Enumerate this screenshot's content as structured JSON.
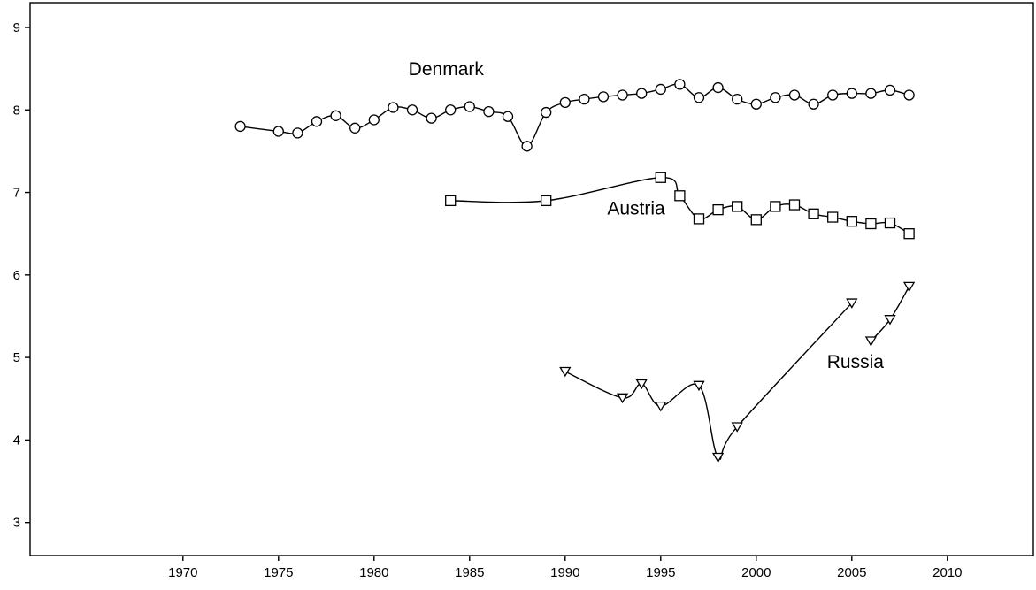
{
  "chart_data": {
    "type": "line",
    "title": "",
    "xlabel": "",
    "ylabel": "",
    "xlim": [
      1962,
      2014.5
    ],
    "ylim": [
      2.6,
      9.3
    ],
    "x_ticks": [
      1970,
      1975,
      1980,
      1985,
      1990,
      1995,
      2000,
      2005,
      2010
    ],
    "y_ticks": [
      3,
      4,
      5,
      6,
      7,
      8,
      9
    ],
    "grid": false,
    "legend": "none",
    "series": [
      {
        "name": "Denmark",
        "marker": "circle",
        "label_x": 1981.8,
        "label_y": 8.42,
        "segments": [
          [
            [
              1973,
              7.8
            ],
            [
              1975,
              7.74
            ],
            [
              1976,
              7.72
            ],
            [
              1977,
              7.86
            ],
            [
              1978,
              7.93
            ],
            [
              1979,
              7.78
            ],
            [
              1980,
              7.88
            ],
            [
              1981,
              8.03
            ],
            [
              1982,
              8.0
            ],
            [
              1983,
              7.9
            ],
            [
              1984,
              8.0
            ],
            [
              1985,
              8.04
            ],
            [
              1986,
              7.98
            ],
            [
              1987,
              7.92
            ],
            [
              1988,
              7.56
            ],
            [
              1989,
              7.97
            ],
            [
              1990,
              8.09
            ],
            [
              1991,
              8.13
            ],
            [
              1992,
              8.16
            ],
            [
              1993,
              8.18
            ],
            [
              1994,
              8.2
            ],
            [
              1995,
              8.25
            ],
            [
              1996,
              8.31
            ],
            [
              1997,
              8.15
            ],
            [
              1998,
              8.27
            ],
            [
              1999,
              8.13
            ],
            [
              2000,
              8.07
            ],
            [
              2001,
              8.15
            ],
            [
              2002,
              8.18
            ],
            [
              2003,
              8.07
            ],
            [
              2004,
              8.18
            ],
            [
              2005,
              8.2
            ],
            [
              2006,
              8.2
            ],
            [
              2007,
              8.24
            ],
            [
              2008,
              8.18
            ]
          ]
        ]
      },
      {
        "name": "Austria",
        "marker": "square",
        "label_x": 1992.2,
        "label_y": 6.73,
        "segments": [
          [
            [
              1984,
              6.9
            ],
            [
              1989,
              6.9
            ],
            [
              1995,
              7.18
            ],
            [
              1996,
              6.96
            ],
            [
              1997,
              6.68
            ],
            [
              1998,
              6.79
            ],
            [
              1999,
              6.83
            ],
            [
              2000,
              6.67
            ],
            [
              2001,
              6.83
            ],
            [
              2002,
              6.85
            ],
            [
              2003,
              6.74
            ],
            [
              2004,
              6.7
            ],
            [
              2005,
              6.65
            ],
            [
              2006,
              6.62
            ],
            [
              2007,
              6.63
            ],
            [
              2008,
              6.5
            ]
          ]
        ]
      },
      {
        "name": "Russia",
        "marker": "triangle-down",
        "label_x": 2003.7,
        "label_y": 4.87,
        "segments": [
          [
            [
              1990,
              4.83
            ],
            [
              1993,
              4.51
            ],
            [
              1994,
              4.68
            ],
            [
              1995,
              4.41
            ],
            [
              1997,
              4.66
            ],
            [
              1998,
              3.79
            ],
            [
              1999,
              4.16
            ],
            [
              2005,
              5.66
            ]
          ],
          [
            [
              2006,
              5.2
            ],
            [
              2007,
              5.46
            ],
            [
              2008,
              5.86
            ]
          ]
        ]
      }
    ]
  }
}
